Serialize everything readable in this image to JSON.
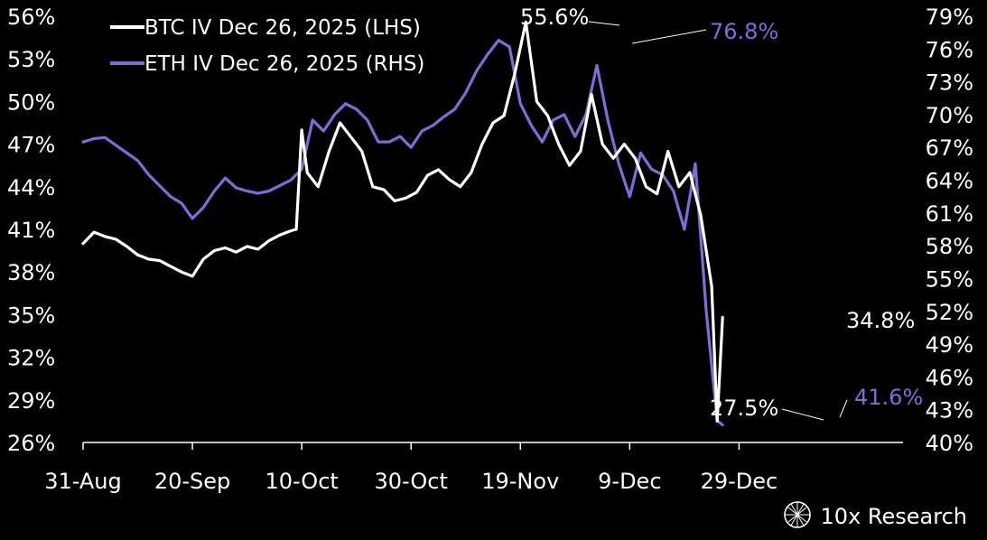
{
  "chart_data": {
    "type": "line",
    "legend_position": "top-left",
    "grid": false,
    "x_ticks": [
      "31-Aug",
      "20-Sep",
      "10-Oct",
      "30-Oct",
      "19-Nov",
      "9-Dec",
      "29-Dec"
    ],
    "xlim": [
      "2025-08-31",
      "2026-01-28"
    ],
    "y_left": {
      "min": 26,
      "max": 56,
      "ticks": [
        "26%",
        "29%",
        "32%",
        "35%",
        "38%",
        "41%",
        "44%",
        "47%",
        "50%",
        "53%",
        "56%"
      ]
    },
    "y_right": {
      "min": 40,
      "max": 79,
      "ticks": [
        "40%",
        "43%",
        "46%",
        "49%",
        "52%",
        "55%",
        "58%",
        "61%",
        "64%",
        "67%",
        "70%",
        "73%",
        "76%",
        "79%"
      ]
    },
    "series": [
      {
        "name": "BTC IV Dec 26, 2025 (LHS)",
        "axis": "left",
        "color": "#ffffff",
        "x": [
          "2025-08-31",
          "2025-09-02",
          "2025-09-04",
          "2025-09-06",
          "2025-09-08",
          "2025-09-10",
          "2025-09-12",
          "2025-09-14",
          "2025-09-16",
          "2025-09-18",
          "2025-09-20",
          "2025-09-22",
          "2025-09-24",
          "2025-09-26",
          "2025-09-28",
          "2025-09-30",
          "2025-10-02",
          "2025-10-04",
          "2025-10-06",
          "2025-10-08",
          "2025-10-09",
          "2025-10-10",
          "2025-10-11",
          "2025-10-13",
          "2025-10-15",
          "2025-10-17",
          "2025-10-19",
          "2025-10-21",
          "2025-10-23",
          "2025-10-25",
          "2025-10-27",
          "2025-10-29",
          "2025-10-31",
          "2025-11-02",
          "2025-11-04",
          "2025-11-06",
          "2025-11-08",
          "2025-11-10",
          "2025-11-12",
          "2025-11-14",
          "2025-11-16",
          "2025-11-18",
          "2025-11-20",
          "2025-11-22",
          "2025-11-24",
          "2025-11-26",
          "2025-11-28",
          "2025-11-30",
          "2025-12-02",
          "2025-12-04",
          "2025-12-06",
          "2025-12-08",
          "2025-12-10",
          "2025-12-12",
          "2025-12-14",
          "2025-12-16",
          "2025-12-18",
          "2025-12-20",
          "2025-12-22",
          "2025-12-24",
          "2025-12-25",
          "2025-12-26"
        ],
        "values": [
          40.0,
          40.8,
          40.5,
          40.3,
          39.8,
          39.2,
          38.9,
          38.8,
          38.4,
          38.0,
          37.7,
          38.9,
          39.5,
          39.7,
          39.4,
          39.8,
          39.6,
          40.2,
          40.6,
          40.9,
          41.0,
          48.0,
          45.0,
          44.0,
          46.5,
          48.5,
          47.5,
          46.5,
          44.0,
          43.8,
          43.0,
          43.2,
          43.6,
          44.8,
          45.2,
          44.5,
          44.0,
          45.0,
          47.0,
          48.5,
          49.0,
          52.0,
          55.6,
          50.0,
          49.0,
          47.0,
          45.5,
          46.5,
          50.5,
          47.0,
          46.0,
          47.0,
          46.0,
          44.0,
          43.5,
          46.5,
          44.0,
          45.0,
          42.0,
          37.0,
          27.5,
          34.8
        ]
      },
      {
        "name": "ETH IV Dec 26, 2025 (RHS)",
        "axis": "right",
        "color": "#7b6fd6",
        "x": [
          "2025-08-31",
          "2025-09-02",
          "2025-09-04",
          "2025-09-06",
          "2025-09-08",
          "2025-09-10",
          "2025-09-12",
          "2025-09-14",
          "2025-09-16",
          "2025-09-18",
          "2025-09-20",
          "2025-09-22",
          "2025-09-24",
          "2025-09-26",
          "2025-09-28",
          "2025-09-30",
          "2025-10-02",
          "2025-10-04",
          "2025-10-06",
          "2025-10-08",
          "2025-10-10",
          "2025-10-12",
          "2025-10-14",
          "2025-10-16",
          "2025-10-18",
          "2025-10-20",
          "2025-10-22",
          "2025-10-24",
          "2025-10-26",
          "2025-10-28",
          "2025-10-30",
          "2025-11-01",
          "2025-11-03",
          "2025-11-05",
          "2025-11-07",
          "2025-11-09",
          "2025-11-11",
          "2025-11-13",
          "2025-11-15",
          "2025-11-17",
          "2025-11-19",
          "2025-11-21",
          "2025-11-23",
          "2025-11-25",
          "2025-11-27",
          "2025-11-29",
          "2025-12-01",
          "2025-12-03",
          "2025-12-05",
          "2025-12-07",
          "2025-12-09",
          "2025-12-11",
          "2025-12-13",
          "2025-12-15",
          "2025-12-17",
          "2025-12-19",
          "2025-12-21",
          "2025-12-23",
          "2025-12-25",
          "2025-12-26"
        ],
        "values": [
          67.5,
          67.8,
          67.9,
          67.2,
          66.5,
          65.8,
          64.5,
          63.5,
          62.5,
          61.9,
          60.5,
          61.5,
          63.0,
          64.2,
          63.3,
          63.0,
          62.8,
          63.0,
          63.5,
          64.0,
          65.0,
          69.5,
          68.5,
          70.0,
          71.0,
          70.5,
          69.5,
          67.5,
          67.5,
          68.0,
          67.0,
          68.5,
          69.0,
          69.8,
          70.5,
          72.0,
          74.0,
          75.5,
          76.8,
          76.2,
          71.0,
          69.0,
          67.5,
          69.5,
          70.0,
          68.0,
          70.0,
          74.5,
          69.5,
          65.5,
          62.5,
          66.5,
          65.0,
          64.5,
          63.0,
          59.5,
          65.5,
          52.0,
          42.0,
          41.6
        ]
      }
    ],
    "annotations": [
      "55.6%",
      "76.8%",
      "34.8%",
      "27.5%",
      "41.6%"
    ]
  },
  "brand": {
    "name": "10x Research",
    "logo_icon": "globe-icon"
  }
}
